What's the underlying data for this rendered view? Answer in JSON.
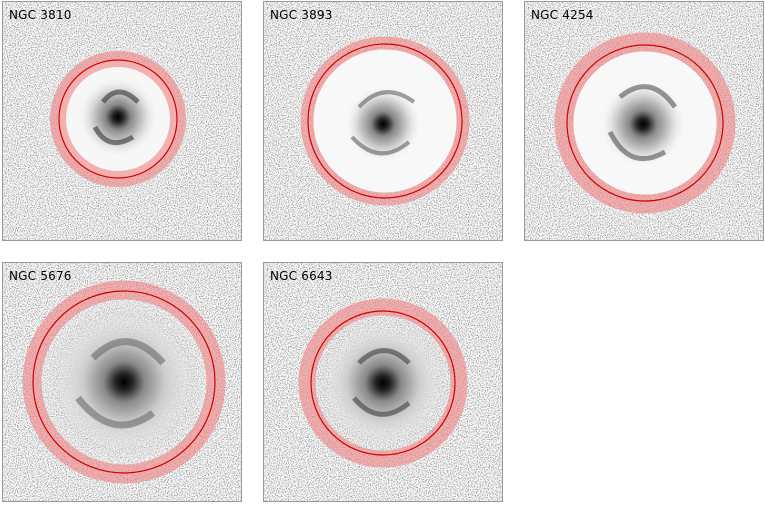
{
  "panels": [
    {
      "label": "NGC 3810"
    },
    {
      "label": "NGC 3893"
    },
    {
      "label": "NGC 4254"
    },
    {
      "label": "NGC 5676"
    },
    {
      "label": "NGC 6643"
    }
  ]
}
